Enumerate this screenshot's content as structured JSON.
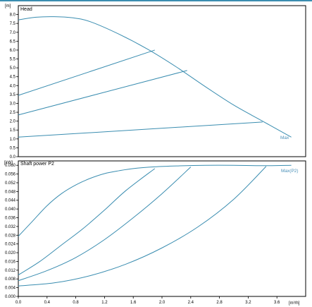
{
  "colors": {
    "curve": "#3a8db0",
    "label": "#4a90b8",
    "frame": "#000000",
    "accent": "#3a8db0"
  },
  "chart_data": [
    {
      "type": "line",
      "title": "Head",
      "y_unit": "[m]",
      "ylim": [
        0,
        8.5
      ],
      "xlim": [
        0,
        4.0
      ],
      "yticks": [
        "0.0",
        "0.5",
        "1.0",
        "1.5",
        "2.0",
        "2.5",
        "3.0",
        "3.5",
        "4.0",
        "4.5",
        "5.0",
        "5.5",
        "6.0",
        "6.5",
        "7.0",
        "7.5",
        "8.0"
      ],
      "ytick_values": [
        0,
        0.5,
        1.0,
        1.5,
        2.0,
        2.5,
        3.0,
        3.5,
        4.0,
        4.5,
        5.0,
        5.5,
        6.0,
        6.5,
        7.0,
        7.5,
        8.0
      ],
      "grid": false,
      "series": [
        {
          "name": "Max",
          "x": [
            0,
            0.25,
            0.5,
            0.75,
            1.0,
            1.4,
            1.8,
            2.2,
            2.6,
            3.0,
            3.4,
            3.8
          ],
          "y": [
            7.7,
            7.85,
            7.88,
            7.82,
            7.6,
            6.9,
            6.05,
            5.05,
            3.95,
            2.9,
            2.0,
            1.1
          ]
        },
        {
          "x": [
            0,
            1.9
          ],
          "y": [
            3.45,
            6.0
          ]
        },
        {
          "x": [
            0,
            2.35
          ],
          "y": [
            2.35,
            4.85
          ]
        },
        {
          "x": [
            0,
            3.4
          ],
          "y": [
            1.1,
            1.95
          ]
        }
      ]
    },
    {
      "type": "line",
      "title": "Shaft power P2",
      "y_unit": "[kW]",
      "x_unit": "[m³/h]",
      "ylim": [
        0,
        0.062
      ],
      "xlim": [
        0,
        4.0
      ],
      "yticks": [
        "0.000",
        "0.004",
        "0.008",
        "0.012",
        "0.016",
        "0.020",
        "0.024",
        "0.028",
        "0.032",
        "0.036",
        "0.040",
        "0.044",
        "0.048",
        "0.052",
        "0.056",
        "0.060"
      ],
      "ytick_values": [
        0,
        0.004,
        0.008,
        0.012,
        0.016,
        0.02,
        0.024,
        0.028,
        0.032,
        0.036,
        0.04,
        0.044,
        0.048,
        0.052,
        0.056,
        0.06
      ],
      "xticks": [
        "0.0",
        "0.4",
        "0.8",
        "1.2",
        "1.6",
        "2.0",
        "2.4",
        "2.8",
        "3.2",
        "3.6"
      ],
      "xtick_values": [
        0,
        0.4,
        0.8,
        1.2,
        1.6,
        2.0,
        2.4,
        2.8,
        3.2,
        3.6
      ],
      "grid": false,
      "series": [
        {
          "name": "Max(P2)",
          "x": [
            0,
            0.2,
            0.4,
            0.6,
            0.8,
            1.0,
            1.2,
            1.4,
            1.6,
            1.9,
            2.2,
            2.6,
            3.0,
            3.4,
            3.8
          ],
          "y": [
            0.0275,
            0.0345,
            0.0415,
            0.047,
            0.051,
            0.054,
            0.0562,
            0.0575,
            0.0585,
            0.0593,
            0.0597,
            0.06,
            0.06,
            0.0598,
            0.06
          ]
        },
        {
          "x": [
            0,
            0.3,
            0.6,
            0.9,
            1.2,
            1.5,
            1.9
          ],
          "y": [
            0.0098,
            0.016,
            0.0235,
            0.031,
            0.0395,
            0.0485,
            0.0585
          ]
        },
        {
          "x": [
            0,
            0.4,
            0.8,
            1.2,
            1.6,
            2.0,
            2.4
          ],
          "y": [
            0.0072,
            0.0118,
            0.0178,
            0.026,
            0.036,
            0.047,
            0.0592
          ]
        },
        {
          "x": [
            0,
            0.5,
            1.0,
            1.5,
            2.0,
            2.5,
            3.0,
            3.45
          ],
          "y": [
            0.0048,
            0.0062,
            0.0095,
            0.0148,
            0.0222,
            0.0318,
            0.0445,
            0.0595
          ]
        }
      ]
    }
  ]
}
